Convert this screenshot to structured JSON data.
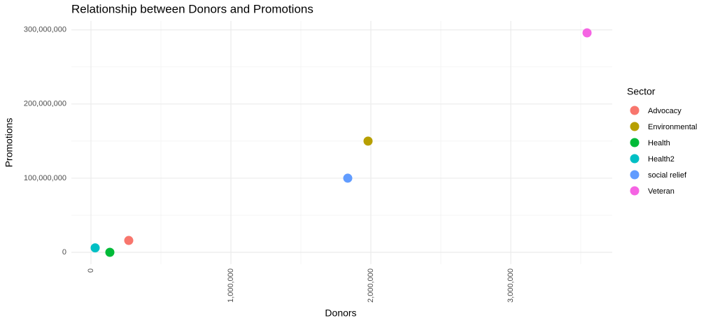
{
  "chart_data": {
    "type": "scatter",
    "title": "Relationship between Donors and Promotions",
    "x_label": "Donors",
    "y_label": "Promotions",
    "legend_title": "Sector",
    "legend_position": "right",
    "series": [
      {
        "name": "Advocacy",
        "color": "#F8766D",
        "x": [
          270000
        ],
        "values": [
          16000000
        ]
      },
      {
        "name": "Environmental",
        "color": "#B79F00",
        "x": [
          1980000
        ],
        "values": [
          150000000
        ]
      },
      {
        "name": "Health",
        "color": "#00BA38",
        "x": [
          135000
        ],
        "values": [
          0
        ]
      },
      {
        "name": "Health2",
        "color": "#00BFC4",
        "x": [
          30000
        ],
        "values": [
          6000000
        ]
      },
      {
        "name": "social relief",
        "color": "#619CFF",
        "x": [
          1835000
        ],
        "values": [
          100000000
        ]
      },
      {
        "name": "Veteran",
        "color": "#F564E3",
        "x": [
          3545000
        ],
        "values": [
          296000000
        ]
      }
    ],
    "xlim": [
      -140000,
      3725000
    ],
    "ylim": [
      -16000000,
      312000000
    ],
    "xticks": [
      0,
      {
        "value": 1000000,
        "label": "1,000,000"
      },
      {
        "value": 2000000,
        "label": "2,000,000"
      },
      {
        "value": 3000000,
        "label": "3,000,000"
      }
    ],
    "yticks": [
      0,
      {
        "value": 100000000,
        "label": "100,000,000"
      },
      {
        "value": 200000000,
        "label": "200,000,000"
      },
      {
        "value": 300000000,
        "label": "300,000,000"
      }
    ],
    "x_minor_ticks": [
      500000,
      1500000,
      2500000,
      3500000
    ],
    "y_minor_ticks": [
      50000000,
      150000000,
      250000000
    ],
    "grid": true
  }
}
